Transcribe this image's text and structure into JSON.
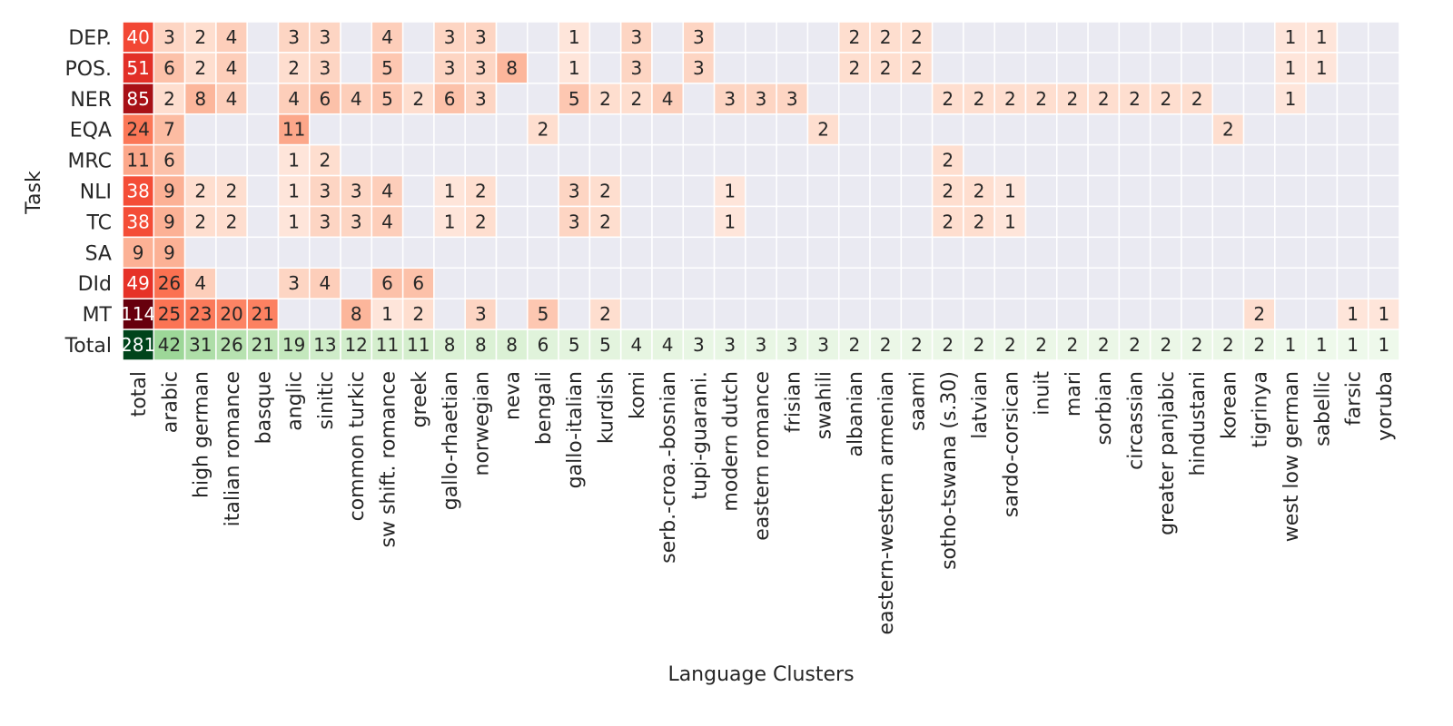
{
  "chart_data": {
    "type": "heatmap",
    "xlabel": "Language Clusters",
    "ylabel": "Task",
    "x_categories": [
      "total",
      "arabic",
      "high german",
      "italian romance",
      "basque",
      "anglic",
      "sinitic",
      "common turkic",
      "sw shift. romance",
      "greek",
      "gallo-rhaetian",
      "norwegian",
      "neva",
      "bengali",
      "gallo-italian",
      "kurdish",
      "komi",
      "serb.-croa.-bosnian",
      "tupi-guarani.",
      "modern dutch",
      "eastern romance",
      "frisian",
      "swahili",
      "albanian",
      "eastern-western armenian",
      "saami",
      "sotho-tswana (s.30)",
      "latvian",
      "sardo-corsican",
      "inuit",
      "mari",
      "sorbian",
      "circassian",
      "greater panjabic",
      "hindustani",
      "korean",
      "tigrinya",
      "west low german",
      "sabellic",
      "farsic",
      "yoruba"
    ],
    "y_categories": [
      "DEP.",
      "POS.",
      "NER",
      "EQA",
      "MRC",
      "NLI",
      "TC",
      "SA",
      "DId",
      "MT",
      "Total"
    ],
    "values": [
      [
        40,
        3,
        2,
        4,
        null,
        3,
        3,
        null,
        4,
        null,
        3,
        3,
        null,
        null,
        1,
        null,
        3,
        null,
        3,
        null,
        null,
        null,
        null,
        2,
        2,
        2,
        null,
        null,
        null,
        null,
        null,
        null,
        null,
        null,
        null,
        null,
        null,
        1,
        1,
        null,
        null
      ],
      [
        51,
        6,
        2,
        4,
        null,
        2,
        3,
        null,
        5,
        null,
        3,
        3,
        8,
        null,
        1,
        null,
        3,
        null,
        3,
        null,
        null,
        null,
        null,
        2,
        2,
        2,
        null,
        null,
        null,
        null,
        null,
        null,
        null,
        null,
        null,
        null,
        null,
        1,
        1,
        null,
        null
      ],
      [
        85,
        2,
        8,
        4,
        null,
        4,
        6,
        4,
        5,
        2,
        6,
        3,
        null,
        null,
        5,
        2,
        2,
        4,
        null,
        3,
        3,
        3,
        null,
        null,
        null,
        null,
        2,
        2,
        2,
        2,
        2,
        2,
        2,
        2,
        2,
        null,
        null,
        1,
        null,
        null,
        null
      ],
      [
        24,
        7,
        null,
        null,
        null,
        11,
        null,
        null,
        null,
        null,
        null,
        null,
        null,
        2,
        null,
        null,
        null,
        null,
        null,
        null,
        null,
        null,
        2,
        null,
        null,
        null,
        null,
        null,
        null,
        null,
        null,
        null,
        null,
        null,
        null,
        2,
        null,
        null,
        null,
        null,
        null
      ],
      [
        11,
        6,
        null,
        null,
        null,
        1,
        2,
        null,
        null,
        null,
        null,
        null,
        null,
        null,
        null,
        null,
        null,
        null,
        null,
        null,
        null,
        null,
        null,
        null,
        null,
        null,
        2,
        null,
        null,
        null,
        null,
        null,
        null,
        null,
        null,
        null,
        null,
        null,
        null,
        null,
        null
      ],
      [
        38,
        9,
        2,
        2,
        null,
        1,
        3,
        3,
        4,
        null,
        1,
        2,
        null,
        null,
        3,
        2,
        null,
        null,
        null,
        1,
        null,
        null,
        null,
        null,
        null,
        null,
        2,
        2,
        1,
        null,
        null,
        null,
        null,
        null,
        null,
        null,
        null,
        null,
        null,
        null,
        null
      ],
      [
        38,
        9,
        2,
        2,
        null,
        1,
        3,
        3,
        4,
        null,
        1,
        2,
        null,
        null,
        3,
        2,
        null,
        null,
        null,
        1,
        null,
        null,
        null,
        null,
        null,
        null,
        2,
        2,
        1,
        null,
        null,
        null,
        null,
        null,
        null,
        null,
        null,
        null,
        null,
        null,
        null
      ],
      [
        9,
        9,
        null,
        null,
        null,
        null,
        null,
        null,
        null,
        null,
        null,
        null,
        null,
        null,
        null,
        null,
        null,
        null,
        null,
        null,
        null,
        null,
        null,
        null,
        null,
        null,
        null,
        null,
        null,
        null,
        null,
        null,
        null,
        null,
        null,
        null,
        null,
        null,
        null,
        null,
        null
      ],
      [
        49,
        26,
        4,
        null,
        null,
        3,
        4,
        null,
        6,
        6,
        null,
        null,
        null,
        null,
        null,
        null,
        null,
        null,
        null,
        null,
        null,
        null,
        null,
        null,
        null,
        null,
        null,
        null,
        null,
        null,
        null,
        null,
        null,
        null,
        null,
        null,
        null,
        null,
        null,
        null,
        null
      ],
      [
        114,
        25,
        23,
        20,
        21,
        null,
        null,
        8,
        1,
        2,
        null,
        3,
        null,
        5,
        null,
        2,
        null,
        null,
        null,
        null,
        null,
        null,
        null,
        null,
        null,
        null,
        null,
        null,
        null,
        null,
        null,
        null,
        null,
        null,
        null,
        null,
        2,
        null,
        null,
        1,
        1
      ],
      [
        281,
        42,
        31,
        26,
        21,
        19,
        13,
        12,
        11,
        11,
        8,
        8,
        8,
        6,
        5,
        5,
        4,
        4,
        3,
        3,
        3,
        3,
        3,
        2,
        2,
        2,
        2,
        2,
        2,
        2,
        2,
        2,
        2,
        2,
        2,
        2,
        2,
        1,
        1,
        1,
        1
      ]
    ],
    "colormaps": {
      "task_rows": "Reds",
      "total_row": "Greens"
    },
    "empty_color": "#eaeaf2",
    "grid_line_color": "#ffffff",
    "legend": "none"
  }
}
